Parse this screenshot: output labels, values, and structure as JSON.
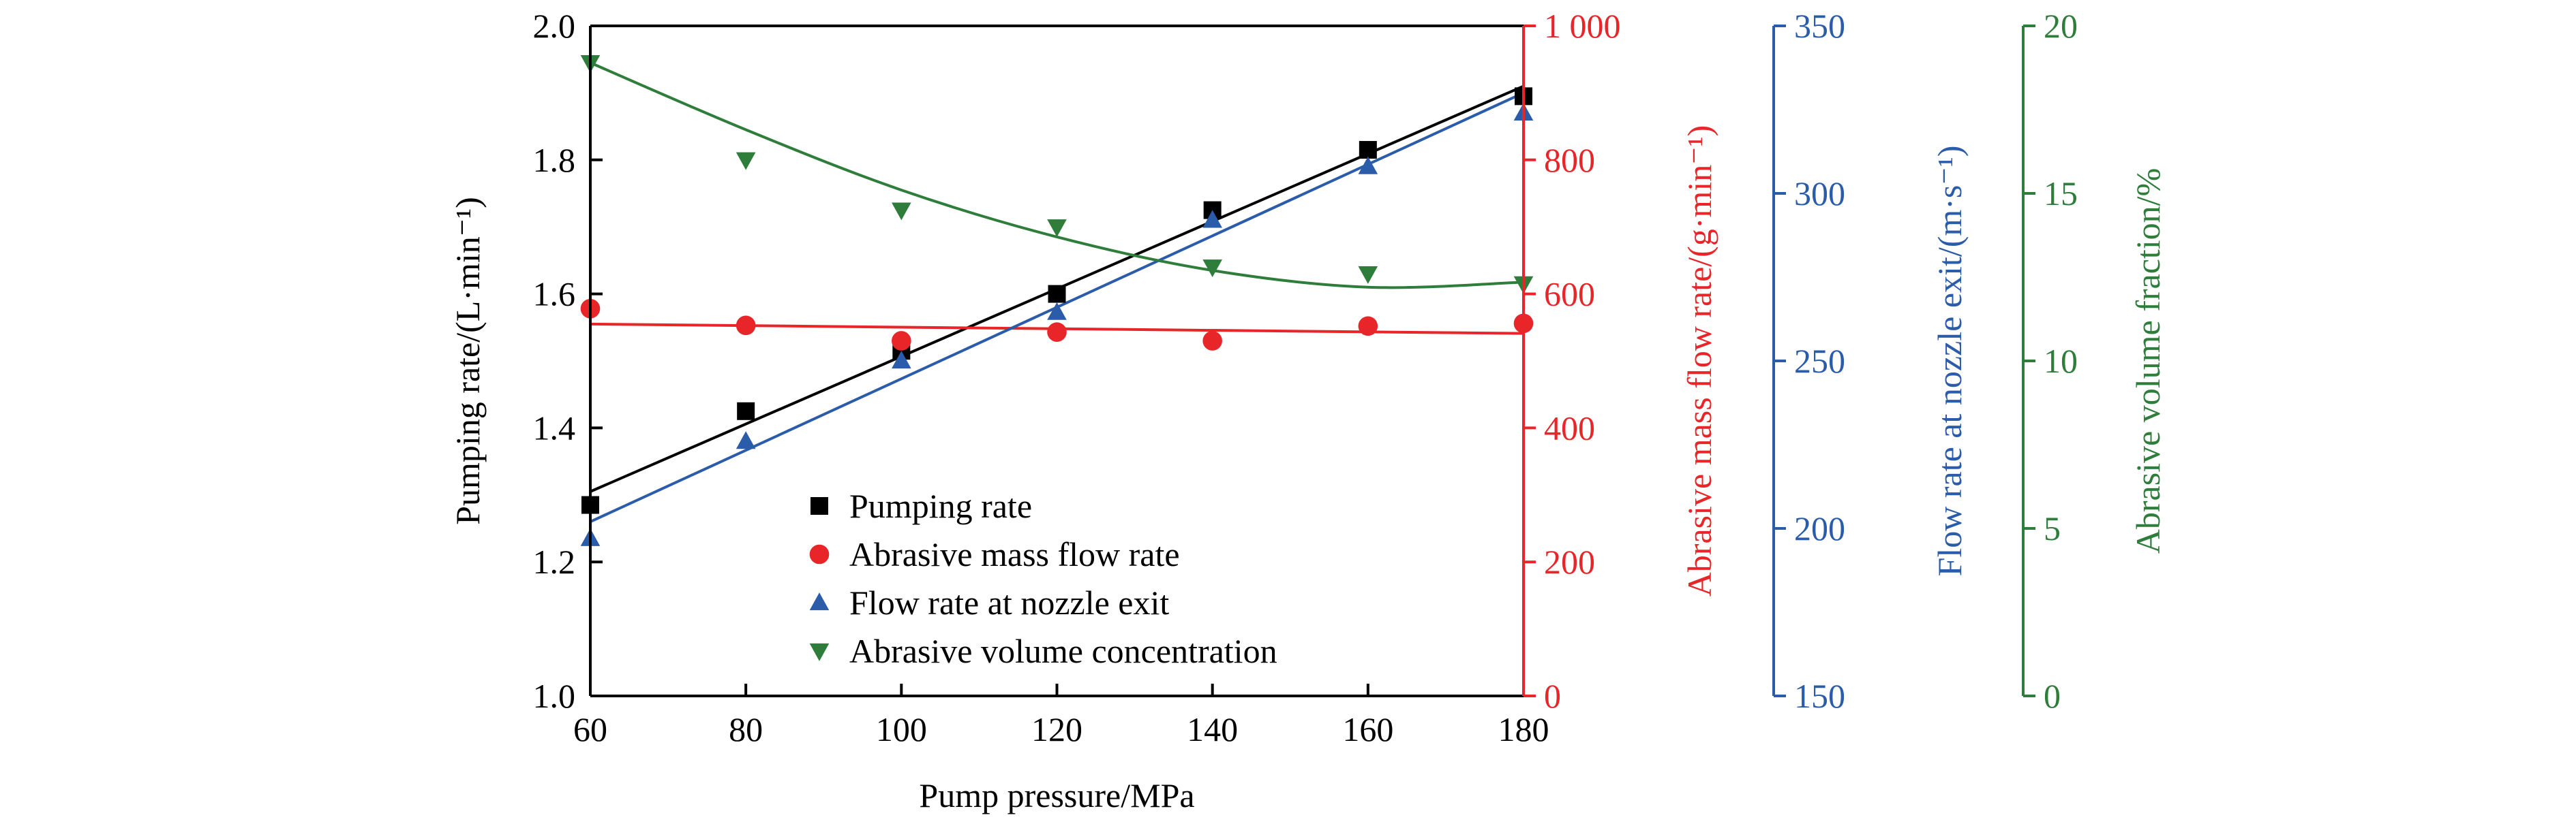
{
  "chart_data": {
    "type": "scatter",
    "x": [
      60,
      80,
      100,
      120,
      140,
      160,
      180
    ],
    "xlabel": "Pump pressure/MPa",
    "xlim": [
      60,
      180
    ],
    "xticks": [
      "60",
      "80",
      "100",
      "120",
      "140",
      "160",
      "180"
    ],
    "legend_position": "center",
    "axes": [
      {
        "id": "pumping",
        "label": "Pumping rate/(L·min⁻¹)",
        "ylim": [
          1.0,
          2.0
        ],
        "ticks": [
          "1.0",
          "1.2",
          "1.4",
          "1.6",
          "1.8",
          "2.0"
        ],
        "color": "#000000",
        "side": "left"
      },
      {
        "id": "mass",
        "label": "Abrasive mass flow rate/(g·min⁻¹)",
        "ylim": [
          0,
          1000
        ],
        "ticks": [
          "0",
          "200",
          "400",
          "600",
          "800",
          "1 000"
        ],
        "color": "#e8262a",
        "side": "right"
      },
      {
        "id": "velocity",
        "label": "Flow rate at nozzle exit/(m·s⁻¹)",
        "ylim": [
          150,
          350
        ],
        "ticks": [
          "150",
          "200",
          "250",
          "300",
          "350"
        ],
        "color": "#2a5caa",
        "side": "right"
      },
      {
        "id": "fraction",
        "label": "Abrasive volume fraction/%",
        "ylim": [
          0,
          20
        ],
        "ticks": [
          "0",
          "5",
          "10",
          "15",
          "20"
        ],
        "color": "#2e7d3a",
        "side": "right"
      }
    ],
    "series": [
      {
        "name": "Pumping rate",
        "axis": "pumping",
        "marker": "square",
        "color": "#000000",
        "values": [
          1.285,
          1.425,
          1.515,
          1.6,
          1.725,
          1.815,
          1.895
        ],
        "fit": [
          1.305,
          1.91
        ]
      },
      {
        "name": "Abrasive mass flow rate",
        "axis": "mass",
        "marker": "circle",
        "color": "#e8262a",
        "values": [
          578,
          553,
          530,
          543,
          530,
          552,
          556
        ],
        "fit": [
          555,
          541
        ]
      },
      {
        "name": "Flow rate at nozzle exit",
        "axis": "velocity",
        "marker": "triangle-up",
        "color": "#2a5caa",
        "values": [
          197,
          226,
          250,
          264.5,
          292,
          308,
          324
        ],
        "fit": [
          202,
          330
        ]
      },
      {
        "name": "Abrasive volume concentration",
        "axis": "fraction",
        "marker": "triangle-down",
        "color": "#2e7d3a",
        "values": [
          18.9,
          16.0,
          14.5,
          14.0,
          12.8,
          12.6,
          12.3
        ],
        "fit_curve": [
          [
            60,
            18.9
          ],
          [
            80,
            16.9
          ],
          [
            100,
            15.1
          ],
          [
            120,
            13.7
          ],
          [
            140,
            12.7
          ],
          [
            160,
            12.2
          ],
          [
            180,
            12.35
          ]
        ]
      }
    ]
  }
}
